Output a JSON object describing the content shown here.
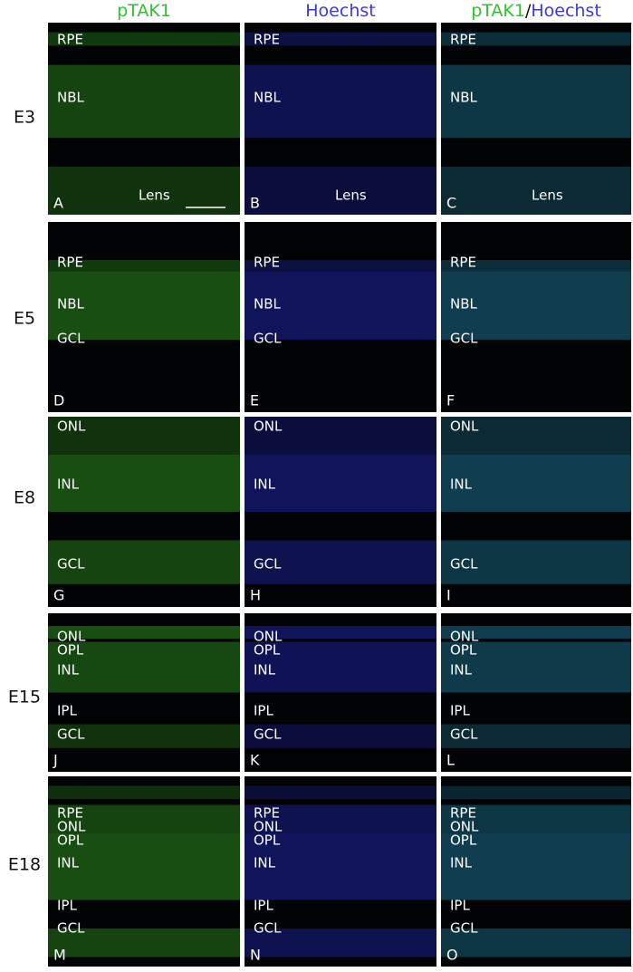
{
  "header": {
    "columns": [
      [
        "pTAK1"
      ],
      [
        "Hoechst"
      ],
      [
        "pTAK1",
        "/",
        "Hoechst"
      ]
    ],
    "colors": [
      [
        "#2fc42f"
      ],
      [
        "#3a3adf"
      ],
      [
        "#2fc42f",
        "#111111",
        "#3a3adf"
      ]
    ]
  },
  "rows": [
    {
      "label": "E3",
      "layers": [
        "RPE",
        "NBL",
        "Lens"
      ],
      "panels": [
        "A",
        "B",
        "C"
      ]
    },
    {
      "label": "E5",
      "layers": [
        "RPE",
        "NBL",
        "GCL"
      ],
      "panels": [
        "D",
        "E",
        "F"
      ]
    },
    {
      "label": "E8",
      "layers": [
        "ONL",
        "INL",
        "GCL"
      ],
      "panels": [
        "G",
        "H",
        "I"
      ]
    },
    {
      "label": "E15",
      "layers": [
        "ONL",
        "OPL",
        "INL",
        "IPL",
        "GCL"
      ],
      "panels": [
        "J",
        "K",
        "L"
      ]
    },
    {
      "label": "E18",
      "layers": [
        "RPE",
        "ONL",
        "OPL",
        "INL",
        "IPL",
        "GCL"
      ],
      "panels": [
        "M",
        "N",
        "O"
      ]
    }
  ]
}
